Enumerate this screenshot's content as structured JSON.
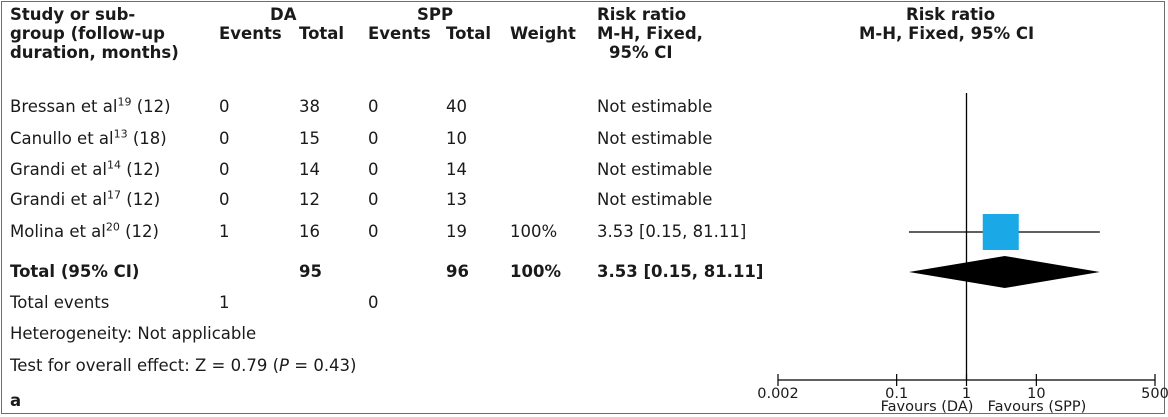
{
  "header": {
    "col_study": [
      "Study or sub-",
      "group (follow-up",
      "duration, months)"
    ],
    "group_da": "DA",
    "group_spp": "SPP",
    "events": "Events",
    "total": "Total",
    "weight": "Weight",
    "rr_head": "Risk ratio",
    "rr_sub": [
      "M-H, Fixed,",
      "95% CI"
    ],
    "plot_head": "Risk ratio",
    "plot_sub": "M-H, Fixed, 95% CI"
  },
  "studies": [
    {
      "name": "Bressan et al",
      "ref": "19",
      "followup": "(12)",
      "da_events": "0",
      "da_total": "38",
      "spp_events": "0",
      "spp_total": "40",
      "weight": "",
      "rr": "Not estimable"
    },
    {
      "name": "Canullo et al",
      "ref": "13",
      "followup": "(18)",
      "da_events": "0",
      "da_total": "15",
      "spp_events": "0",
      "spp_total": "10",
      "weight": "",
      "rr": "Not estimable"
    },
    {
      "name": "Grandi et al",
      "ref": "14",
      "followup": "(12)",
      "da_events": "0",
      "da_total": "14",
      "spp_events": "0",
      "spp_total": "14",
      "weight": "",
      "rr": "Not estimable"
    },
    {
      "name": "Grandi et al",
      "ref": "17",
      "followup": "(12)",
      "da_events": "0",
      "da_total": "12",
      "spp_events": "0",
      "spp_total": "13",
      "weight": "",
      "rr": "Not estimable"
    },
    {
      "name": "Molina et al",
      "ref": "20",
      "followup": "(12)",
      "da_events": "1",
      "da_total": "16",
      "spp_events": "0",
      "spp_total": "19",
      "weight": "100%",
      "rr": "3.53 [0.15, 81.11]"
    }
  ],
  "total": {
    "label": "Total (95% CI)",
    "da_total": "95",
    "spp_total": "96",
    "weight": "100%",
    "rr": "3.53 [0.15, 81.11]"
  },
  "total_events": {
    "label": "Total events",
    "da": "1",
    "spp": "0"
  },
  "heterogeneity": "Heterogeneity: Not applicable",
  "overall": {
    "prefix": "Test for overall effect: Z = 0.79 (",
    "p": "P",
    "suffix": " = 0.43)"
  },
  "panel_label": "a",
  "axis": {
    "favours_left": "Favours (DA)",
    "favours_right": "Favours (SPP)"
  },
  "colors": {
    "study_marker": "#1aa9e6",
    "diamond": "#000000",
    "border": "#6d6d6d"
  },
  "chart_data": {
    "type": "forest",
    "scale": "log",
    "xlim": [
      0.002,
      500
    ],
    "xticks": [
      {
        "value": 0.002,
        "label": "0.002"
      },
      {
        "value": 0.1,
        "label": "0.1"
      },
      {
        "value": 1,
        "label": "1"
      },
      {
        "value": 10,
        "label": "10"
      },
      {
        "value": 500,
        "label": "500"
      }
    ],
    "null_line": 1,
    "estimates": [
      {
        "study": "Molina et al",
        "rr": 3.53,
        "lower": 0.15,
        "upper": 81.11,
        "weight": 100
      }
    ],
    "pooled": {
      "rr": 3.53,
      "lower": 0.15,
      "upper": 81.11
    }
  }
}
